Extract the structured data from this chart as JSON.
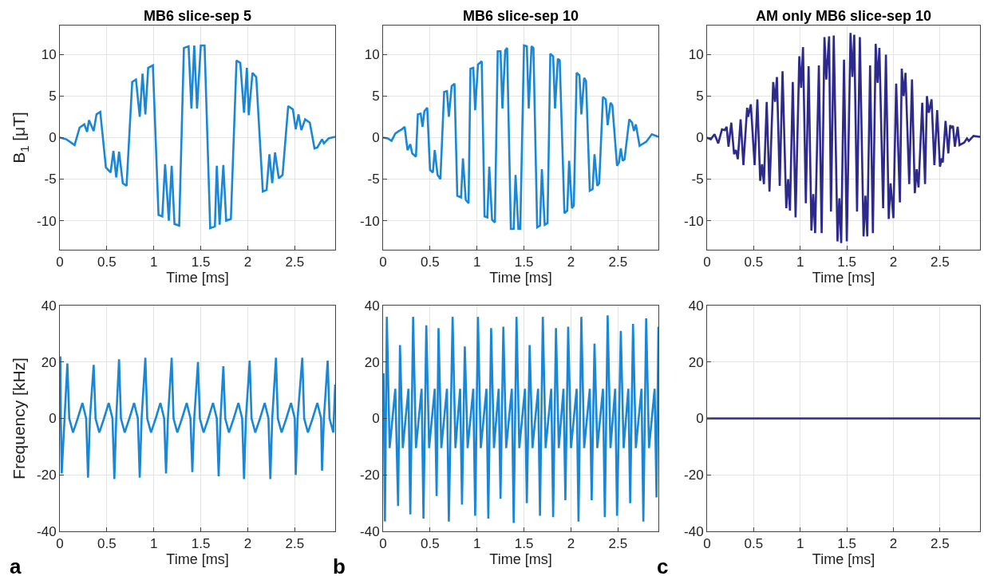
{
  "chart_data": [
    {
      "type": "line",
      "title": "MB6 slice-sep 5",
      "xlabel": "Time [ms]",
      "ylabel": "B$_{1}$ [μT]",
      "xlim": [
        0,
        2.93
      ],
      "ylim": [
        -13.5,
        13.5
      ],
      "xticks": [
        0,
        0.5,
        1,
        1.5,
        2,
        2.5
      ],
      "yticks": [
        -10,
        -5,
        0,
        5,
        10
      ],
      "grid": true,
      "x": [
        0,
        0.07,
        0.157,
        0.21,
        0.26,
        0.29,
        0.31,
        0.36,
        0.39,
        0.43,
        0.49,
        0.54,
        0.57,
        0.6,
        0.63,
        0.67,
        0.71,
        0.77,
        0.81,
        0.85,
        0.88,
        0.91,
        0.94,
        0.99,
        1.05,
        1.09,
        1.12,
        1.16,
        1.19,
        1.22,
        1.27,
        1.32,
        1.37,
        1.4,
        1.43,
        1.46,
        1.5,
        1.54,
        1.6,
        1.65,
        1.67,
        1.7,
        1.74,
        1.77,
        1.82,
        1.88,
        1.92,
        1.96,
        1.99,
        2.01,
        2.05,
        2.09,
        2.16,
        2.2,
        2.23,
        2.26,
        2.29,
        2.33,
        2.37,
        2.43,
        2.48,
        2.51,
        2.54,
        2.57,
        2.61,
        2.66,
        2.71,
        2.74,
        2.79,
        2.81,
        2.86,
        2.93
      ],
      "series": [
        {
          "color": "#1a87d6",
          "values": [
            0,
            -0.2,
            -0.9,
            1.2,
            1.6,
            0.7,
            2.1,
            0.8,
            2.8,
            3.1,
            -3.6,
            -4.2,
            -1.6,
            -4.8,
            -1.7,
            -5.5,
            -5.8,
            6.7,
            7.0,
            2.5,
            7.7,
            2.8,
            8.4,
            8.7,
            -9.3,
            -9.5,
            -3.2,
            -10.0,
            -3.4,
            -10.4,
            -10.6,
            10.8,
            11.0,
            3.5,
            11.1,
            3.5,
            11.1,
            11.1,
            -10.9,
            -10.7,
            -3.4,
            -10.5,
            -3.3,
            -10.0,
            -9.8,
            9.3,
            9.0,
            3.0,
            8.4,
            2.7,
            7.8,
            7.3,
            -6.5,
            -6.3,
            -2.0,
            -5.5,
            -1.8,
            -4.9,
            -4.5,
            3.8,
            3.4,
            1.0,
            2.8,
            0.9,
            2.2,
            1.8,
            -1.3,
            -1.2,
            -0.2,
            -0.7,
            -0.1,
            0.1
          ]
        }
      ]
    },
    {
      "type": "line",
      "title": "MB6 slice-sep 10",
      "xlabel": "Time [ms]",
      "xlim": [
        0,
        2.93
      ],
      "ylim": [
        -13.5,
        13.5
      ],
      "xticks": [
        0,
        0.5,
        1,
        1.5,
        2,
        2.5
      ],
      "yticks": [
        -10,
        -5,
        0,
        5,
        10
      ],
      "grid": true,
      "x": [
        0,
        0.05,
        0.09,
        0.13,
        0.17,
        0.2,
        0.23,
        0.26,
        0.29,
        0.31,
        0.35,
        0.37,
        0.4,
        0.42,
        0.44,
        0.47,
        0.5,
        0.53,
        0.55,
        0.58,
        0.61,
        0.65,
        0.68,
        0.7,
        0.73,
        0.76,
        0.79,
        0.83,
        0.85,
        0.88,
        0.91,
        0.93,
        0.96,
        0.98,
        1.01,
        1.05,
        1.08,
        1.11,
        1.13,
        1.16,
        1.19,
        1.22,
        1.25,
        1.27,
        1.3,
        1.32,
        1.36,
        1.39,
        1.41,
        1.44,
        1.46,
        1.5,
        1.53,
        1.55,
        1.58,
        1.6,
        1.64,
        1.67,
        1.69,
        1.72,
        1.75,
        1.78,
        1.81,
        1.83,
        1.86,
        1.88,
        1.93,
        1.96,
        1.98,
        2.01,
        2.03,
        2.06,
        2.09,
        2.11,
        2.14,
        2.16,
        2.2,
        2.23,
        2.25,
        2.28,
        2.3,
        2.34,
        2.37,
        2.39,
        2.42,
        2.44,
        2.49,
        2.51,
        2.53,
        2.55,
        2.57,
        2.62,
        2.65,
        2.67,
        2.69,
        2.73,
        2.77,
        2.8,
        2.86,
        2.93
      ],
      "series": [
        {
          "color": "#1a87d6",
          "values": [
            0,
            -0.1,
            -0.4,
            0.5,
            0.8,
            1.0,
            1.3,
            -1.5,
            -0.8,
            -1.9,
            -2.3,
            2.8,
            2.9,
            1.3,
            3.2,
            3.6,
            -3.9,
            -4.2,
            -1.5,
            -4.5,
            -5.0,
            5.5,
            5.6,
            2.5,
            6.2,
            6.5,
            -7.0,
            -7.2,
            -2.5,
            -7.5,
            -7.9,
            8.3,
            8.4,
            3.3,
            8.8,
            9.2,
            -9.5,
            -9.6,
            -3.5,
            -9.9,
            -10.2,
            10.4,
            10.4,
            3.5,
            10.5,
            10.8,
            -11.0,
            -11.0,
            -4.5,
            -11.0,
            -11.0,
            11.1,
            11.0,
            3.5,
            11.0,
            10.8,
            -10.8,
            -10.6,
            -3.8,
            -10.5,
            -10.3,
            10.1,
            9.8,
            3.5,
            9.5,
            9.3,
            -9.1,
            -8.8,
            -2.8,
            -8.5,
            -8.2,
            7.8,
            7.5,
            2.8,
            7.2,
            6.8,
            -6.4,
            -6.2,
            -2.0,
            -5.8,
            -5.5,
            4.9,
            4.6,
            1.5,
            4.2,
            3.9,
            -3.4,
            -3.0,
            -1.3,
            -2.8,
            -2.6,
            2.2,
            1.8,
            0.8,
            1.6,
            -1.0,
            -0.7,
            -0.5,
            0.4,
            0.1
          ]
        }
      ]
    },
    {
      "type": "line",
      "title": "AM only MB6 slice-sep 10",
      "xlabel": "Time [ms]",
      "xlim": [
        0,
        2.93
      ],
      "ylim": [
        -13.5,
        13.5
      ],
      "xticks": [
        0,
        0.5,
        1,
        1.5,
        2,
        2.5
      ],
      "yticks": [
        -10,
        -5,
        0,
        5,
        10
      ],
      "grid": true,
      "x": [
        0,
        0.04,
        0.08,
        0.12,
        0.16,
        0.19,
        0.21,
        0.23,
        0.26,
        0.29,
        0.31,
        0.33,
        0.36,
        0.39,
        0.43,
        0.44,
        0.47,
        0.51,
        0.54,
        0.57,
        0.59,
        0.61,
        0.64,
        0.67,
        0.71,
        0.73,
        0.75,
        0.78,
        0.81,
        0.85,
        0.87,
        0.89,
        0.92,
        0.95,
        0.99,
        1.01,
        1.03,
        1.06,
        1.09,
        1.12,
        1.14,
        1.16,
        1.2,
        1.23,
        1.26,
        1.28,
        1.31,
        1.33,
        1.36,
        1.4,
        1.42,
        1.44,
        1.47,
        1.5,
        1.54,
        1.56,
        1.58,
        1.61,
        1.64,
        1.68,
        1.7,
        1.72,
        1.75,
        1.78,
        1.81,
        1.83,
        1.85,
        1.89,
        1.92,
        1.95,
        1.97,
        2.0,
        2.03,
        2.07,
        2.09,
        2.11,
        2.13,
        2.17,
        2.2,
        2.23,
        2.25,
        2.27,
        2.31,
        2.34,
        2.36,
        2.38,
        2.41,
        2.44,
        2.47,
        2.5,
        2.52,
        2.53,
        2.56,
        2.59,
        2.61,
        2.62,
        2.64,
        2.66,
        2.69,
        2.71,
        2.76,
        2.79,
        2.81,
        2.86,
        2.93
      ],
      "series": [
        {
          "color": "#2e2a8c",
          "values": [
            0,
            -0.2,
            0.4,
            -0.7,
            1.0,
            0.9,
            1.3,
            -1.1,
            1.8,
            -2.0,
            -1.5,
            -2.6,
            2.2,
            -3.3,
            3.6,
            2.5,
            4.0,
            -3.3,
            4.6,
            -5.2,
            -3.2,
            -5.6,
            4.3,
            -6.5,
            6.7,
            4.3,
            7.3,
            -5.8,
            8.0,
            -8.5,
            -5.0,
            -8.8,
            6.7,
            -9.6,
            9.8,
            6.0,
            10.9,
            -7.9,
            8.6,
            -11.2,
            -6.8,
            -11.5,
            8.7,
            -11.5,
            12.1,
            7.0,
            12.2,
            -8.9,
            12.3,
            -12.5,
            -7.3,
            -12.7,
            9.4,
            -12.5,
            12.6,
            7.3,
            12.4,
            -8.9,
            12.1,
            -11.9,
            -7.0,
            -11.9,
            8.7,
            -11.5,
            11.3,
            6.6,
            10.8,
            -8.5,
            10.0,
            -9.8,
            -5.5,
            -9.7,
            6.5,
            -7.8,
            8.3,
            5.0,
            7.8,
            -5.6,
            7.0,
            -6.7,
            -3.8,
            -6.0,
            4.2,
            -5.6,
            5.0,
            3.0,
            4.6,
            -3.3,
            3.3,
            -3.5,
            -2.5,
            -3.0,
            2.0,
            -1.9,
            1.5,
            1.2,
            1.4,
            -1.1,
            1.3,
            -0.9,
            -0.6,
            -0.1,
            -0.4,
            0.2,
            0.1
          ]
        }
      ]
    },
    {
      "type": "line",
      "xlabel": "Time [ms]",
      "ylabel": "Frequency [kHz]",
      "annotations": [
        "a"
      ],
      "xlim": [
        0,
        2.93
      ],
      "ylim": [
        -40,
        40
      ],
      "xticks": [
        0,
        0.5,
        1,
        1.5,
        2,
        2.5
      ],
      "yticks": [
        -40,
        -20,
        0,
        20,
        40
      ],
      "grid": true,
      "x": [
        0,
        0.005,
        0.01,
        0.02,
        0.05,
        0.08,
        0.1,
        0.14,
        0.19,
        0.24,
        0.28,
        0.3,
        0.32,
        0.36,
        0.38,
        0.42,
        0.47,
        0.52,
        0.56,
        0.58,
        0.6,
        0.63,
        0.65,
        0.69,
        0.74,
        0.79,
        0.83,
        0.85,
        0.87,
        0.91,
        0.93,
        0.97,
        1.02,
        1.07,
        1.11,
        1.13,
        1.15,
        1.19,
        1.21,
        1.25,
        1.3,
        1.35,
        1.39,
        1.41,
        1.43,
        1.47,
        1.49,
        1.53,
        1.58,
        1.63,
        1.67,
        1.69,
        1.71,
        1.74,
        1.76,
        1.8,
        1.85,
        1.9,
        1.94,
        1.96,
        1.98,
        2.02,
        2.04,
        2.08,
        2.13,
        2.18,
        2.22,
        2.24,
        2.26,
        2.3,
        2.32,
        2.36,
        2.41,
        2.46,
        2.5,
        2.51,
        2.53,
        2.58,
        2.6,
        2.64,
        2.69,
        2.74,
        2.78,
        2.79,
        2.81,
        2.85,
        2.87,
        2.91,
        2.93
      ],
      "series": [
        {
          "color": "#1a87d6",
          "values": [
            0,
            22,
            0,
            -19.5,
            0,
            19.5,
            0,
            -5,
            0,
            5.5,
            0,
            -21,
            0,
            19,
            0,
            -5,
            0,
            5.5,
            0,
            -21.5,
            0,
            21,
            0,
            -5,
            0,
            5.5,
            0,
            -21,
            0,
            21.5,
            0,
            -5,
            0,
            5.5,
            0,
            -19.5,
            0,
            21.5,
            0,
            -5,
            0,
            5.5,
            0,
            -19,
            0,
            20,
            0,
            -5,
            0,
            5.5,
            0,
            -20.5,
            0,
            18.5,
            0,
            -5,
            0,
            5.5,
            0,
            -21.5,
            0,
            20.5,
            0,
            -5,
            0,
            5.5,
            0,
            -21.5,
            0,
            21.5,
            0,
            -5,
            0,
            5.5,
            0,
            -20,
            0,
            21.5,
            0,
            -5,
            0,
            5.5,
            0,
            -18.5,
            0,
            20.5,
            0,
            -5,
            12
          ]
        }
      ]
    },
    {
      "type": "line",
      "xlabel": "Time [ms]",
      "annotations": [
        "b"
      ],
      "xlim": [
        0,
        2.93
      ],
      "ylim": [
        -40,
        40
      ],
      "xticks": [
        0,
        0.5,
        1,
        1.5,
        2,
        2.5
      ],
      "yticks": [
        -40,
        -20,
        0,
        20,
        40
      ],
      "grid": true,
      "x": [
        0,
        0.005,
        0.02,
        0.04,
        0.07,
        0.13,
        0.16,
        0.18,
        0.21,
        0.27,
        0.29,
        0.32,
        0.35,
        0.41,
        0.43,
        0.46,
        0.49,
        0.55,
        0.57,
        0.59,
        0.62,
        0.68,
        0.7,
        0.74,
        0.77,
        0.82,
        0.84,
        0.87,
        0.9,
        0.96,
        0.98,
        1.01,
        1.04,
        1.1,
        1.12,
        1.15,
        1.18,
        1.23,
        1.25,
        1.28,
        1.31,
        1.37,
        1.39,
        1.42,
        1.45,
        1.51,
        1.53,
        1.56,
        1.59,
        1.65,
        1.67,
        1.7,
        1.73,
        1.79,
        1.81,
        1.84,
        1.87,
        1.92,
        1.94,
        1.97,
        2.0,
        2.06,
        2.08,
        2.11,
        2.14,
        2.2,
        2.22,
        2.25,
        2.28,
        2.34,
        2.36,
        2.39,
        2.42,
        2.47,
        2.49,
        2.53,
        2.56,
        2.61,
        2.63,
        2.66,
        2.69,
        2.75,
        2.77,
        2.8,
        2.83,
        2.89,
        2.91,
        2.93
      ],
      "series": [
        {
          "color": "#1a87d6",
          "values": [
            0,
            16,
            -36.5,
            36,
            -10.5,
            10.5,
            -31,
            26,
            -10.5,
            10.5,
            -34,
            36,
            -10.5,
            10.5,
            -35.5,
            33,
            -10.5,
            10.5,
            -27.5,
            32,
            -10.5,
            10.5,
            -36.5,
            36,
            -10.5,
            10.5,
            -30.5,
            25.5,
            -10.5,
            10.5,
            -34.5,
            36,
            -10.5,
            10.5,
            -35.5,
            32,
            -10.5,
            10.5,
            -28.5,
            32.5,
            -10.5,
            10.5,
            -37,
            36,
            -10.5,
            10.5,
            -30,
            26,
            -10.5,
            10.5,
            -34.5,
            36,
            -10.5,
            10.5,
            -35,
            32,
            -10.5,
            10.5,
            -29,
            32.5,
            -10.5,
            10.5,
            -36.5,
            36,
            -10.5,
            10.5,
            -29,
            26.5,
            -10.5,
            10.5,
            -35,
            36.5,
            -10.5,
            10.5,
            -34.5,
            31,
            -10.5,
            10.5,
            -30,
            33.5,
            -10.5,
            10.5,
            -36.5,
            35.5,
            -10.5,
            10.5,
            -28,
            32.5
          ]
        }
      ]
    },
    {
      "type": "line",
      "xlabel": "Time [ms]",
      "annotations": [
        "c"
      ],
      "xlim": [
        0,
        2.93
      ],
      "ylim": [
        -40,
        40
      ],
      "xticks": [
        0,
        0.5,
        1,
        1.5,
        2,
        2.5
      ],
      "yticks": [
        -40,
        -20,
        0,
        20,
        40
      ],
      "grid": true,
      "x": [
        0,
        2.93
      ],
      "series": [
        {
          "color": "#2e2a8c",
          "values": [
            0,
            0
          ]
        }
      ]
    }
  ]
}
